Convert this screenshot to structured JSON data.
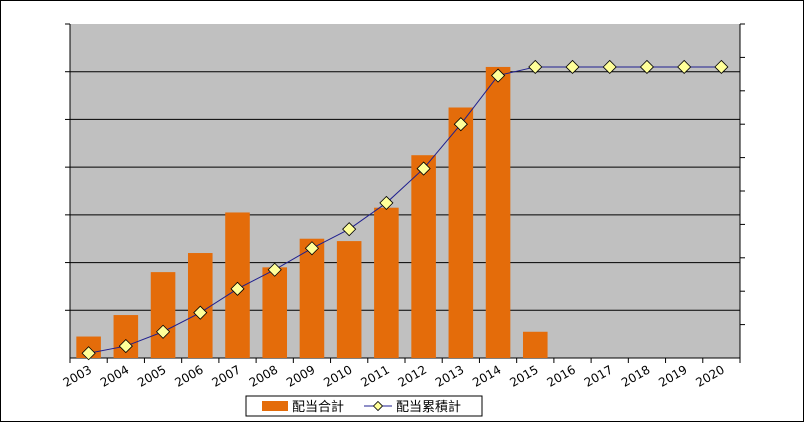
{
  "chart_data": {
    "type": "bar",
    "categories": [
      "2003",
      "2004",
      "2005",
      "2006",
      "2007",
      "2008",
      "2009",
      "2010",
      "2011",
      "2012",
      "2013",
      "2014",
      "2015",
      "2016",
      "2017",
      "2018",
      "2019",
      "2020"
    ],
    "series": [
      {
        "name": "配当合計",
        "type": "bar",
        "color": "#e46c0a",
        "values": [
          0.45,
          0.9,
          1.8,
          2.2,
          3.05,
          1.9,
          2.5,
          2.45,
          3.15,
          4.25,
          5.25,
          6.1,
          0.55,
          null,
          null,
          null,
          null,
          null
        ]
      },
      {
        "name": "配当累積計",
        "type": "line",
        "color": "#1f1f8f",
        "marker_color": "#ffff99",
        "values": [
          0.1,
          0.25,
          0.55,
          0.95,
          1.45,
          1.85,
          2.3,
          2.7,
          3.25,
          3.97,
          4.9,
          5.92,
          6.1,
          6.1,
          6.1,
          6.1,
          6.1,
          6.1
        ]
      }
    ],
    "ylim": [
      0,
      7
    ],
    "y_gridlines": [
      1,
      2,
      3,
      4,
      5,
      6
    ],
    "ytick_labels_shown": false,
    "plot_background": "#c0c0c0",
    "grid": true,
    "legend_position": "bottom-center"
  }
}
